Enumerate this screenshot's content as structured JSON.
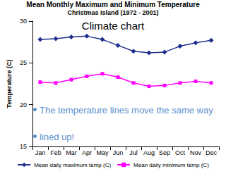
{
  "chart_data": {
    "type": "line",
    "title": "Mean Monthly Maximum and Minimum Temperature",
    "subtitle": "Christmas Island (1972 - 2001)",
    "y_label": "Temperature (C)",
    "categories": [
      "Jan",
      "Feb",
      "Mar",
      "Apr",
      "May",
      "Jun",
      "Jul",
      "Aug",
      "Sep",
      "Oct",
      "Nov",
      "Dec"
    ],
    "series": [
      {
        "name": "Mean daily maximum temp (C)",
        "color": "#1f2f8f",
        "marker": "diamond",
        "values": [
          27.8,
          27.9,
          28.1,
          28.2,
          27.8,
          27.1,
          26.4,
          26.2,
          26.3,
          27.0,
          27.4,
          27.7
        ]
      },
      {
        "name": "Mean daily minimum temp (C)",
        "color": "#ff00ff",
        "marker": "square",
        "values": [
          22.7,
          22.6,
          23.0,
          23.4,
          23.7,
          23.3,
          22.6,
          22.2,
          22.3,
          22.6,
          22.8,
          22.6
        ]
      }
    ],
    "ylim": [
      15,
      30
    ],
    "yticks": [
      15,
      20,
      25,
      30
    ],
    "grid": false,
    "legend": "bottom",
    "annotations": [
      "Climate chart",
      "The temperature lines move the same way",
      "lined up!"
    ]
  }
}
